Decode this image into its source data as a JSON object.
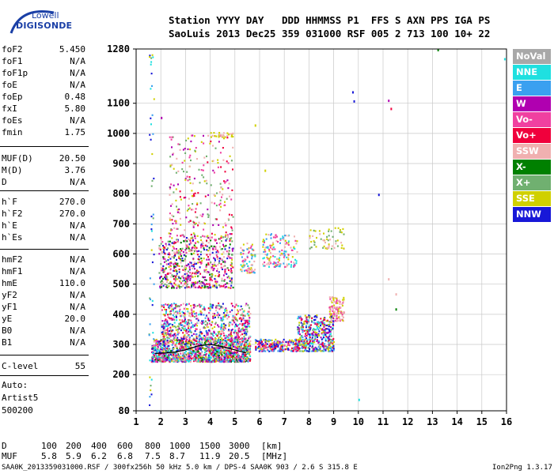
{
  "logo": {
    "line1": "Lowell",
    "line2": "DIGISONDE"
  },
  "header": {
    "line1": "Station YYYY DAY   DDD HHMMSS P1  FFS S AXN PPS IGA PS",
    "line2": "SaoLuis 2013 Dec25 359 031000 RSF 005 2 713 100 10+ 22"
  },
  "params_group1": [
    {
      "label": "foF2",
      "value": "5.450"
    },
    {
      "label": "foF1",
      "value": "N/A"
    },
    {
      "label": "foF1p",
      "value": "N/A"
    },
    {
      "label": "foE",
      "value": "N/A"
    },
    {
      "label": "foEp",
      "value": "0.48"
    },
    {
      "label": "fxI",
      "value": "5.80"
    },
    {
      "label": "foEs",
      "value": "N/A"
    },
    {
      "label": "fmin",
      "value": "1.75"
    }
  ],
  "params_group2": [
    {
      "label": "MUF(D)",
      "value": "20.50"
    },
    {
      "label": "M(D)",
      "value": "3.76"
    },
    {
      "label": "D",
      "value": "N/A"
    }
  ],
  "params_group3": [
    {
      "label": "h`F",
      "value": "270.0"
    },
    {
      "label": "h`F2",
      "value": "270.0"
    },
    {
      "label": "h`E",
      "value": "N/A"
    },
    {
      "label": "h`Es",
      "value": "N/A"
    }
  ],
  "params_group4": [
    {
      "label": "hmF2",
      "value": "N/A"
    },
    {
      "label": "hmF1",
      "value": "N/A"
    },
    {
      "label": "hmE",
      "value": "110.0"
    },
    {
      "label": "yF2",
      "value": "N/A"
    },
    {
      "label": "yF1",
      "value": "N/A"
    },
    {
      "label": "yE",
      "value": "20.0"
    },
    {
      "label": "B0",
      "value": "N/A"
    },
    {
      "label": "B1",
      "value": "N/A"
    }
  ],
  "clevel": {
    "label": "C-level",
    "value": "55"
  },
  "autoscale": {
    "line1": "Auto:",
    "line2": "Artist5",
    "line3": "500200"
  },
  "legend": [
    {
      "label": "NoVal",
      "color": "#a8a8a8"
    },
    {
      "label": "NNE",
      "color": "#1fe0e0"
    },
    {
      "label": "E",
      "color": "#3aa0f0"
    },
    {
      "label": "W",
      "color": "#b000b0"
    },
    {
      "label": "Vo-",
      "color": "#f040a0"
    },
    {
      "label": "Vo+",
      "color": "#f0003c"
    },
    {
      "label": "SSW",
      "color": "#f0b0b0"
    },
    {
      "label": "X-",
      "color": "#008000"
    },
    {
      "label": "X+",
      "color": "#70b070"
    },
    {
      "label": "SSE",
      "color": "#d0d000"
    },
    {
      "label": "NNW",
      "color": "#1818d8"
    }
  ],
  "muf_table": {
    "d_label": "D",
    "d_values": [
      "100",
      "200",
      "400",
      "600",
      "800",
      "1000",
      "1500",
      "3000"
    ],
    "d_unit": "[km]",
    "muf_label": "MUF",
    "muf_values": [
      "5.8",
      "5.9",
      "6.2",
      "6.8",
      "7.5",
      "8.7",
      "11.9",
      "20.5"
    ],
    "muf_unit": "[MHz]"
  },
  "footer": {
    "left": "SAA0K_2013359031000.RSF / 300fx256h 50 kHz 5.0 km / DPS-4 SAA0K 903 / 2.6 S 315.8 E",
    "right": "Ion2Png 1.3.17"
  },
  "chart_data": {
    "type": "scatter",
    "title": "",
    "xlabel": "",
    "ylabel": "",
    "xlim": [
      1,
      16
    ],
    "ylim": [
      80,
      1280
    ],
    "x_ticks": [
      1,
      2,
      3,
      4,
      5,
      6,
      7,
      8,
      9,
      10,
      11,
      12,
      13,
      14,
      15,
      16
    ],
    "y_ticks": [
      80,
      200,
      300,
      400,
      500,
      600,
      700,
      800,
      900,
      1000,
      1100,
      1280
    ],
    "grid": true,
    "trace_color": "#000000",
    "trace": [
      {
        "x": 1.75,
        "y": 270
      },
      {
        "x": 2.2,
        "y": 272
      },
      {
        "x": 2.6,
        "y": 275
      },
      {
        "x": 3.0,
        "y": 282
      },
      {
        "x": 3.5,
        "y": 295
      },
      {
        "x": 4.0,
        "y": 300
      },
      {
        "x": 4.5,
        "y": 293
      },
      {
        "x": 5.0,
        "y": 282
      },
      {
        "x": 5.45,
        "y": 272
      }
    ],
    "echo_clusters": [
      {
        "x": [
          1.6,
          5.6
        ],
        "y": [
          245,
          320
        ],
        "n": 1400,
        "colors": [
          "#f0003c",
          "#f040a0",
          "#b000b0",
          "#1818d8",
          "#3aa0f0",
          "#008000",
          "#70b070",
          "#d0d000",
          "#f0b0b0",
          "#1fe0e0"
        ]
      },
      {
        "x": [
          2.0,
          5.6
        ],
        "y": [
          320,
          440
        ],
        "n": 700,
        "colors": [
          "#f0003c",
          "#f040a0",
          "#b000b0",
          "#1818d8",
          "#3aa0f0",
          "#d0d000",
          "#70b070",
          "#f0b0b0",
          "#1fe0e0"
        ]
      },
      {
        "x": [
          1.9,
          4.9
        ],
        "y": [
          490,
          660
        ],
        "n": 650,
        "colors": [
          "#d0d000",
          "#f040a0",
          "#f0003c",
          "#b000b0",
          "#70b070",
          "#f0b0b0",
          "#1818d8",
          "#008000"
        ]
      },
      {
        "x": [
          2.3,
          4.9
        ],
        "y": [
          660,
          1000
        ],
        "n": 260,
        "colors": [
          "#f0b0b0",
          "#f040a0",
          "#f0003c",
          "#b000b0",
          "#d0d000",
          "#70b070"
        ]
      },
      {
        "x": [
          5.2,
          5.8
        ],
        "y": [
          540,
          640
        ],
        "n": 80,
        "colors": [
          "#d0d000",
          "#1fe0e0",
          "#f040a0",
          "#3aa0f0",
          "#f0b0b0"
        ]
      },
      {
        "x": [
          5.8,
          7.6
        ],
        "y": [
          280,
          320
        ],
        "n": 220,
        "colors": [
          "#f0003c",
          "#f040a0",
          "#d0d000",
          "#1818d8",
          "#3aa0f0"
        ]
      },
      {
        "x": [
          6.1,
          7.5
        ],
        "y": [
          560,
          670
        ],
        "n": 160,
        "colors": [
          "#d0d000",
          "#f0b0b0",
          "#1fe0e0",
          "#3aa0f0",
          "#f040a0"
        ]
      },
      {
        "x": [
          7.5,
          9.0
        ],
        "y": [
          280,
          400
        ],
        "n": 420,
        "colors": [
          "#1818d8",
          "#b000b0",
          "#3aa0f0",
          "#d0d000",
          "#f0003c",
          "#70b070",
          "#1fe0e0"
        ]
      },
      {
        "x": [
          8.8,
          9.4
        ],
        "y": [
          380,
          460
        ],
        "n": 110,
        "colors": [
          "#f0b0b0",
          "#d0d000",
          "#f040a0"
        ]
      },
      {
        "x": [
          8.0,
          9.4
        ],
        "y": [
          620,
          690
        ],
        "n": 60,
        "colors": [
          "#d0d000",
          "#f0b0b0",
          "#70b070"
        ]
      },
      {
        "x": [
          4.0,
          4.9
        ],
        "y": [
          990,
          1005
        ],
        "n": 30,
        "colors": [
          "#d0d000",
          "#f0b0b0"
        ]
      },
      {
        "x": [
          1.5,
          1.7
        ],
        "y": [
          100,
          1270
        ],
        "n": 50,
        "colors": [
          "#1fe0e0",
          "#3aa0f0",
          "#70b070",
          "#1818d8",
          "#d0d000"
        ]
      }
    ],
    "isolated_points": [
      {
        "x": 9.75,
        "y": 1140,
        "color": "#1818d8"
      },
      {
        "x": 9.8,
        "y": 1110,
        "color": "#1818d8"
      },
      {
        "x": 11.2,
        "y": 1112,
        "color": "#b000b0"
      },
      {
        "x": 11.3,
        "y": 1085,
        "color": "#f0003c"
      },
      {
        "x": 10.8,
        "y": 800,
        "color": "#1818d8"
      },
      {
        "x": 11.5,
        "y": 470,
        "color": "#f0b0b0"
      },
      {
        "x": 11.5,
        "y": 420,
        "color": "#008000"
      },
      {
        "x": 10.0,
        "y": 120,
        "color": "#1fe0e0"
      },
      {
        "x": 13.2,
        "y": 1280,
        "color": "#008000"
      },
      {
        "x": 15.9,
        "y": 1250,
        "color": "#1fe0e0"
      },
      {
        "x": 2.0,
        "y": 1055,
        "color": "#b000b0"
      },
      {
        "x": 5.8,
        "y": 1030,
        "color": "#d0d000"
      },
      {
        "x": 6.2,
        "y": 880,
        "color": "#d0d000"
      },
      {
        "x": 11.2,
        "y": 520,
        "color": "#f0b0b0"
      }
    ]
  }
}
